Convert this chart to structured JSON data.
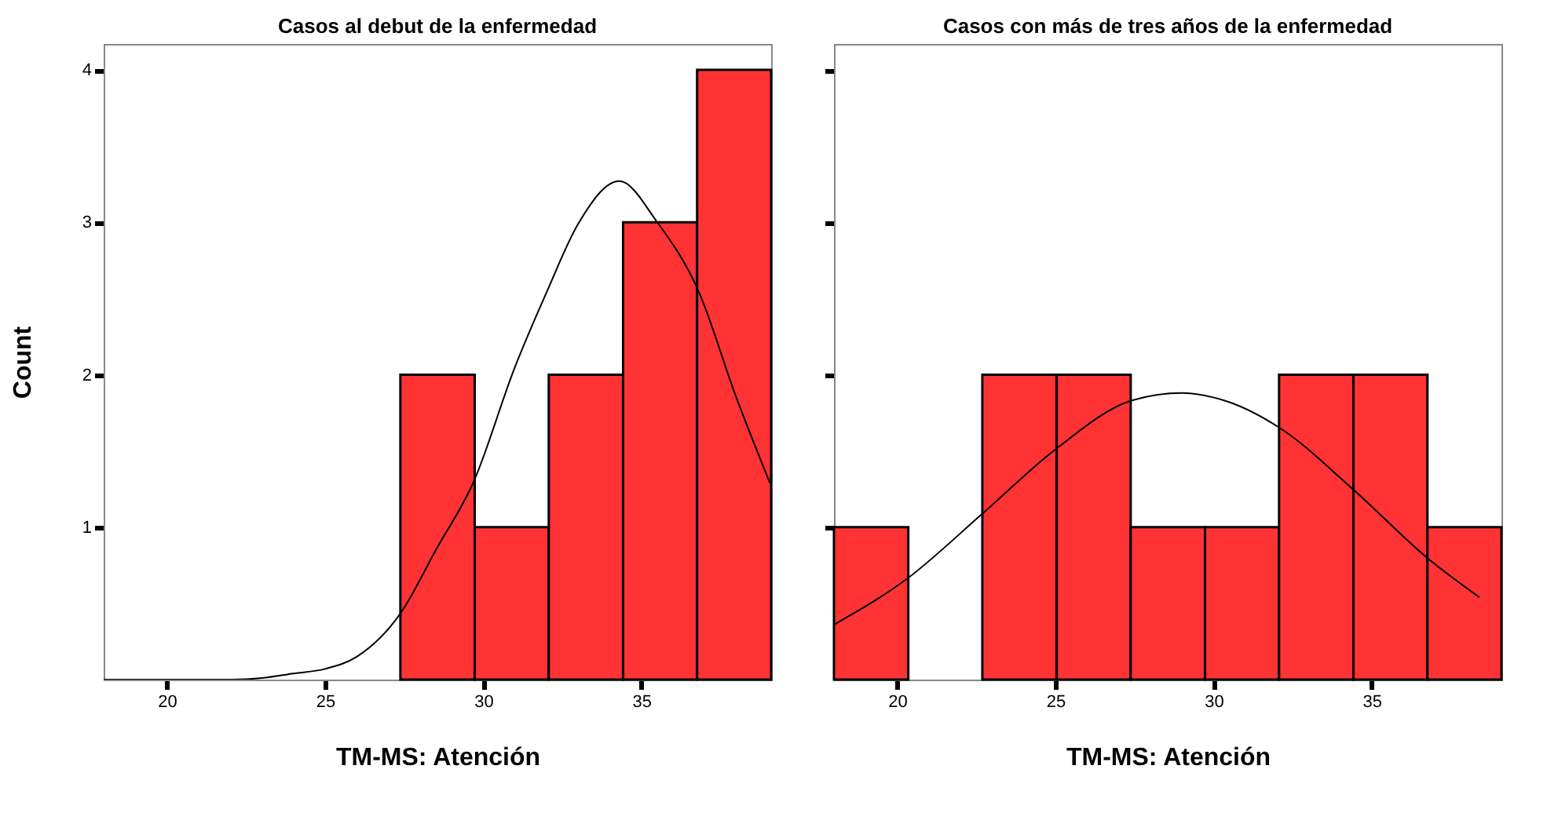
{
  "chart_data": [
    {
      "type": "histogram",
      "title": "Casos al debut de la enfermedad",
      "xlabel": "TM-MS: Atención",
      "ylabel": "Count",
      "color": "#ff3333",
      "bins": [
        27.38,
        29.73,
        32.07,
        34.42,
        36.76,
        39.1
      ],
      "values": [
        2,
        1,
        2,
        3,
        4
      ],
      "series": [
        {
          "type": "line",
          "color": "#000000",
          "x": [
            18,
            20,
            22,
            23,
            24,
            25,
            26,
            27.4,
            28.5,
            29.7,
            31,
            32,
            33,
            34.3,
            35.5,
            36.8,
            38,
            39.06
          ],
          "values": [
            0,
            0,
            0,
            0.01,
            0.04,
            0.07,
            0.15,
            0.44,
            0.85,
            1.3,
            2.05,
            2.54,
            2.99,
            3.27,
            3.0,
            2.55,
            1.85,
            1.29
          ]
        }
      ],
      "xlim": [
        18,
        39.1
      ],
      "xticks": [
        20,
        25,
        30,
        35
      ],
      "ylim": [
        0,
        4.17
      ],
      "yticks": [
        1,
        2,
        3,
        4
      ],
      "grid": false
    },
    {
      "type": "histogram",
      "title": "Casos con más de tres años de la enfermedad",
      "xlabel": "TM-MS: Atención",
      "color": "#ff3333",
      "bins": [
        18,
        20.35,
        22.69,
        25.04,
        27.38,
        29.73,
        32.07,
        34.42,
        36.76,
        39.1
      ],
      "values": [
        1,
        0,
        2,
        2,
        1,
        1,
        2,
        2,
        1
      ],
      "series": [
        {
          "type": "line",
          "color": "#000000",
          "x": [
            18,
            20.3,
            22.7,
            25,
            27.4,
            29,
            30.5,
            32.1,
            34.4,
            36.8,
            38.4
          ],
          "values": [
            0.36,
            0.66,
            1.09,
            1.51,
            1.83,
            1.88,
            1.82,
            1.65,
            1.25,
            0.79,
            0.54
          ]
        }
      ],
      "xlim": [
        18,
        39.1
      ],
      "xticks": [
        20,
        25,
        30,
        35
      ],
      "ylim": [
        0,
        4.17
      ],
      "yticks": [
        1,
        2,
        3,
        4
      ],
      "tick_labels": "x",
      "grid": false
    }
  ]
}
